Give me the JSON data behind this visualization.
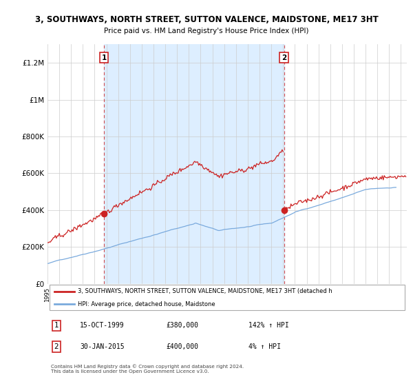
{
  "title": "3, SOUTHWAYS, NORTH STREET, SUTTON VALENCE, MAIDSTONE, ME17 3HT",
  "subtitle": "Price paid vs. HM Land Registry's House Price Index (HPI)",
  "legend_red": "3, SOUTHWAYS, NORTH STREET, SUTTON VALENCE, MAIDSTONE, ME17 3HT (detached h",
  "legend_blue": "HPI: Average price, detached house, Maidstone",
  "transaction1_date": "15-OCT-1999",
  "transaction1_price": "£380,000",
  "transaction1_hpi": "142% ↑ HPI",
  "transaction2_date": "30-JAN-2015",
  "transaction2_price": "£400,000",
  "transaction2_hpi": "4% ↑ HPI",
  "footnote": "Contains HM Land Registry data © Crown copyright and database right 2024.\nThis data is licensed under the Open Government Licence v3.0.",
  "red_color": "#cc2222",
  "blue_color": "#7aaadd",
  "shade_color": "#ddeeff",
  "background_color": "#ffffff",
  "grid_color": "#cccccc",
  "ylim": [
    0,
    1300000
  ],
  "yticks": [
    0,
    200000,
    400000,
    600000,
    800000,
    1000000,
    1200000
  ],
  "ytick_labels": [
    "£0",
    "£200K",
    "£400K",
    "£600K",
    "£800K",
    "£1M",
    "£1.2M"
  ],
  "transaction1_x": 1999.79,
  "transaction1_y": 380000,
  "transaction2_x": 2015.08,
  "transaction2_y": 400000,
  "xmin": 1995.0,
  "xmax": 2025.5
}
